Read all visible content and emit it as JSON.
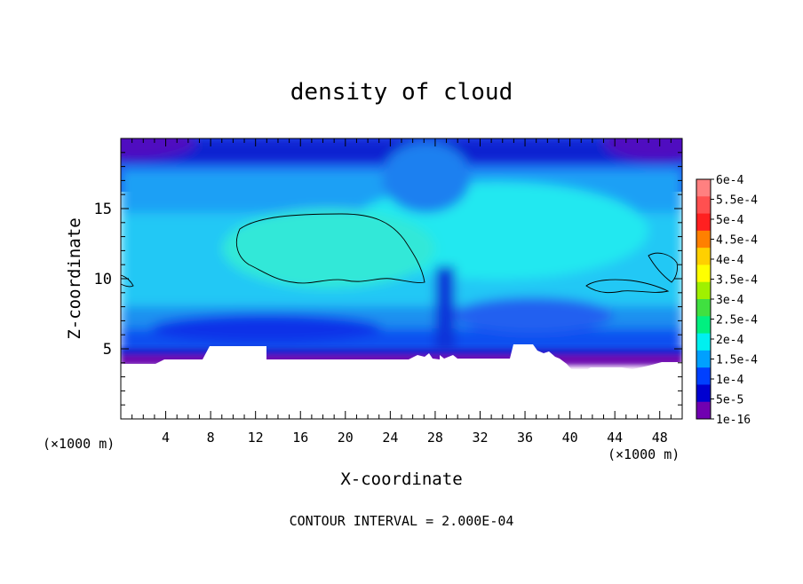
{
  "chart_data": {
    "type": "heatmap",
    "title": "density of cloud",
    "xlabel": "X-coordinate",
    "ylabel": "Z-coordinate",
    "x_unit_label": "(×1000 m)",
    "x_unit_label_right": "(×1000 m)",
    "footer": "CONTOUR INTERVAL = 2.000E-04",
    "xlim": [
      0,
      50
    ],
    "ylim": [
      0,
      20
    ],
    "x_ticks": [
      4,
      8,
      12,
      16,
      20,
      24,
      28,
      32,
      36,
      40,
      44,
      48
    ],
    "x_tick_labels": [
      "4",
      "8",
      "12",
      "16",
      "20",
      "24",
      "28",
      "32",
      "36",
      "40",
      "44",
      "48"
    ],
    "y_ticks": [
      5,
      10,
      15
    ],
    "y_tick_labels": [
      "5",
      "10",
      "15"
    ],
    "colorbar": {
      "labels": [
        "6e-4",
        "5.5e-4",
        "5e-4",
        "4.5e-4",
        "4e-4",
        "3.5e-4",
        "3e-4",
        "2.5e-4",
        "2e-4",
        "1.5e-4",
        "1e-4",
        "5e-5",
        "1e-16"
      ],
      "colors": [
        "#ff8080",
        "#ff5050",
        "#ff2020",
        "#ff8000",
        "#ffd000",
        "#ffff00",
        "#a0f000",
        "#40e040",
        "#00f080",
        "#00f0f0",
        "#00a0ff",
        "#0040ff",
        "#0000d0",
        "#7000b0"
      ]
    },
    "contour_level": 0.0002,
    "features": [
      {
        "name": "cloud core (>2e-4)",
        "x_range": [
          10,
          27
        ],
        "z_range": [
          9.5,
          14.5
        ]
      },
      {
        "name": "terrain / empty region",
        "z_max": 5.5
      }
    ]
  }
}
